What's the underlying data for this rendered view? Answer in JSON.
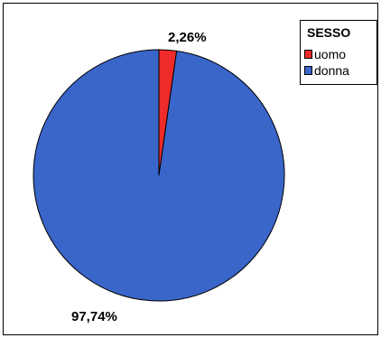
{
  "chart_data": {
    "type": "pie",
    "title": "",
    "legend_title": "SESSO",
    "legend_position": "top-right",
    "categories": [
      "uomo",
      "donna"
    ],
    "values": [
      2.26,
      97.74
    ],
    "colors": [
      "#ee2a2a",
      "#3a65c9"
    ],
    "data_labels": [
      "2,26%",
      "97,74%"
    ],
    "start_angle_deg": 0,
    "direction": "clockwise"
  }
}
